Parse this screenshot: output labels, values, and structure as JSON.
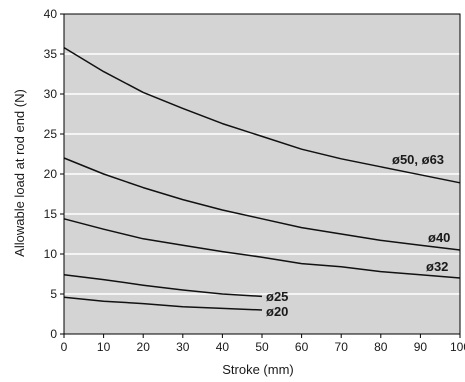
{
  "chart_data": {
    "type": "line",
    "title": "",
    "xlabel": "Stroke (mm)",
    "ylabel": "Allowable load at rod end (N)",
    "xlim": [
      0,
      100
    ],
    "ylim": [
      0,
      40
    ],
    "xticks": [
      0,
      10,
      20,
      30,
      40,
      50,
      60,
      70,
      80,
      90,
      100
    ],
    "yticks": [
      0,
      5,
      10,
      15,
      20,
      25,
      30,
      35,
      40
    ],
    "grid": "horizontal",
    "colors": {
      "plot_bg": "#d4d4d4",
      "grid": "#ffffff",
      "line": "#111111",
      "axis": "#000000"
    },
    "series": [
      {
        "name": "ø50, ø63",
        "x": [
          0,
          10,
          20,
          30,
          40,
          50,
          60,
          70,
          80,
          90,
          100
        ],
        "y": [
          35.8,
          32.8,
          30.2,
          28.2,
          26.3,
          24.7,
          23.1,
          21.9,
          20.9,
          19.9,
          18.9
        ]
      },
      {
        "name": "ø40",
        "x": [
          0,
          10,
          20,
          30,
          40,
          50,
          60,
          70,
          80,
          90,
          100
        ],
        "y": [
          22.0,
          20.0,
          18.3,
          16.8,
          15.5,
          14.4,
          13.3,
          12.5,
          11.7,
          11.1,
          10.5
        ]
      },
      {
        "name": "ø32",
        "x": [
          0,
          10,
          20,
          30,
          40,
          50,
          60,
          70,
          80,
          90,
          100
        ],
        "y": [
          14.4,
          13.1,
          11.9,
          11.1,
          10.3,
          9.6,
          8.8,
          8.4,
          7.8,
          7.4,
          7.0
        ]
      },
      {
        "name": "ø25",
        "x": [
          0,
          10,
          20,
          30,
          40,
          50
        ],
        "y": [
          7.4,
          6.8,
          6.1,
          5.5,
          5.0,
          4.7
        ]
      },
      {
        "name": "ø20",
        "x": [
          0,
          10,
          20,
          30,
          40,
          50
        ],
        "y": [
          4.6,
          4.1,
          3.8,
          3.4,
          3.2,
          3.0
        ]
      }
    ]
  }
}
